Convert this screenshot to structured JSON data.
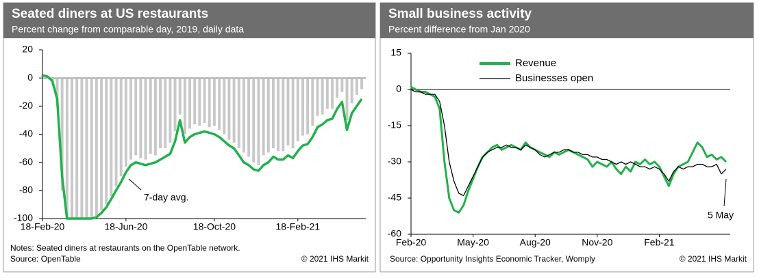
{
  "chart_data": [
    {
      "type": "bar",
      "title": "Seated diners at US restaurants",
      "subtitle": "Percent change from comparable day, 2019, daily data",
      "categories": [
        "18-Feb-20",
        null,
        null,
        null,
        null,
        null,
        null,
        null,
        null,
        null,
        null,
        null,
        null,
        null,
        null,
        null,
        null,
        "18-Jun-20",
        null,
        null,
        null,
        null,
        null,
        null,
        null,
        null,
        null,
        null,
        null,
        null,
        null,
        null,
        null,
        null,
        null,
        "18-Oct-20",
        null,
        null,
        null,
        null,
        null,
        null,
        null,
        null,
        null,
        null,
        null,
        null,
        null,
        null,
        null,
        null,
        "18-Feb-21",
        null,
        null,
        null,
        null,
        null,
        null,
        null,
        null,
        null,
        null,
        null,
        null,
        null
      ],
      "values": [
        2,
        1,
        -3,
        -20,
        -80,
        -100,
        -100,
        -100,
        -100,
        -100,
        -100,
        -98,
        -94,
        -90,
        -84,
        -77,
        -70,
        -63,
        -58,
        -55,
        -57,
        -58,
        -54,
        -55,
        -50,
        -50,
        -46,
        -38,
        -26,
        -40,
        -36,
        -33,
        -34,
        -32,
        -35,
        -34,
        -37,
        -40,
        -44,
        -46,
        -50,
        -53,
        -56,
        -60,
        -62,
        -55,
        -53,
        -50,
        -52,
        -52,
        -48,
        -50,
        -45,
        -41,
        -40,
        -34,
        -27,
        -26,
        -22,
        -22,
        -14,
        -10,
        -30,
        -18,
        -12,
        -8
      ],
      "color": "#c8c8c8",
      "avg_values": [
        2,
        1,
        -2,
        -15,
        -70,
        -100,
        -100,
        -100,
        -100,
        -100,
        -100,
        -99,
        -96,
        -92,
        -86,
        -80,
        -74,
        -67,
        -62,
        -60,
        -61,
        -62,
        -61,
        -60,
        -58,
        -56,
        -54,
        -45,
        -30,
        -46,
        -42,
        -40,
        -39,
        -38,
        -39,
        -40,
        -42,
        -45,
        -48,
        -50,
        -55,
        -60,
        -62,
        -65,
        -66,
        -62,
        -60,
        -56,
        -58,
        -58,
        -55,
        -57,
        -52,
        -48,
        -47,
        -42,
        -35,
        -33,
        -30,
        -29,
        -22,
        -17,
        -37,
        -25,
        -20,
        -15
      ],
      "avg_color": "#22b14c",
      "ylim": [
        -100,
        20
      ],
      "yticks": [
        -100,
        -80,
        -60,
        -40,
        -20,
        0,
        20
      ],
      "annotation": "7-day avg.",
      "notes": "Notes: Seated diners at restaurants on the OpenTable network.",
      "source": "Source: OpenTable",
      "copyright": "© 2021 IHS Markit"
    },
    {
      "type": "line",
      "title": "Small business activity",
      "subtitle": "Percent difference from Jan 2020",
      "categories": [
        "Feb-20",
        null,
        null,
        null,
        null,
        null,
        null,
        null,
        null,
        null,
        null,
        null,
        null,
        "May-20",
        null,
        null,
        null,
        null,
        null,
        null,
        null,
        null,
        null,
        null,
        null,
        null,
        "Aug-20",
        null,
        null,
        null,
        null,
        null,
        null,
        null,
        null,
        null,
        null,
        null,
        null,
        "Nov-20",
        null,
        null,
        null,
        null,
        null,
        null,
        null,
        null,
        null,
        null,
        null,
        null,
        "Feb-21",
        null,
        null,
        null,
        null,
        null,
        null,
        null,
        null,
        null,
        null,
        null,
        null,
        null,
        null
      ],
      "series": [
        {
          "name": "Revenue",
          "color": "#22b14c",
          "values": [
            1,
            0,
            -1,
            -1,
            -2,
            -3,
            -8,
            -30,
            -45,
            -50,
            -51,
            -48,
            -42,
            -37,
            -32,
            -28,
            -26,
            -24,
            -23,
            -25,
            -24,
            -23,
            -24,
            -25,
            -22,
            -24,
            -25,
            -26,
            -27,
            -28,
            -26,
            -27,
            -26,
            -25,
            -26,
            -27,
            -28,
            -29,
            -32,
            -30,
            -31,
            -32,
            -30,
            -33,
            -35,
            -32,
            -34,
            -30,
            -31,
            -29,
            -31,
            -30,
            -32,
            -36,
            -40,
            -35,
            -32,
            -31,
            -30,
            -26,
            -22,
            -24,
            -28,
            -27,
            -29,
            -28,
            -30
          ]
        },
        {
          "name": "Businesses open",
          "color": "#000000",
          "values": [
            0,
            -1,
            -1,
            -2,
            -2,
            -2,
            -5,
            -15,
            -30,
            -38,
            -43,
            -44,
            -40,
            -36,
            -32,
            -28,
            -26,
            -25,
            -24,
            -24,
            -23,
            -24,
            -24,
            -25,
            -23,
            -24,
            -25,
            -27,
            -28,
            -27,
            -26,
            -26,
            -25,
            -25,
            -26,
            -26,
            -27,
            -27,
            -28,
            -28,
            -29,
            -29,
            -30,
            -31,
            -30,
            -31,
            -30,
            -31,
            -32,
            -32,
            -33,
            -32,
            -33,
            -35,
            -38,
            -34,
            -32,
            -33,
            -32,
            -32,
            -31,
            -31,
            -32,
            -32,
            -31,
            -35,
            -33
          ]
        }
      ],
      "ylim": [
        -60,
        15
      ],
      "yticks": [
        -60,
        -45,
        -30,
        -15,
        0,
        15
      ],
      "annotation": "5 May",
      "source": "Source: Opportunity Insights Economic Tracker, Womply",
      "copyright": "© 2021 IHS Markit"
    }
  ]
}
